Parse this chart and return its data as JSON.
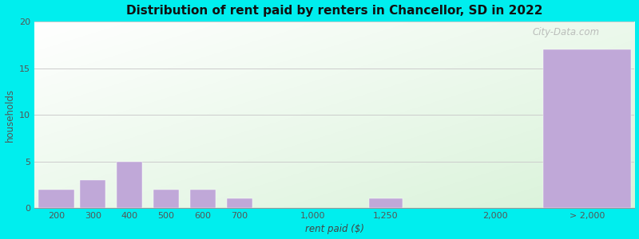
{
  "title": "Distribution of rent paid by renters in Chancellor, SD in 2022",
  "xlabel": "rent paid ($)",
  "ylabel": "households",
  "background_outer": "#00EEEE",
  "bar_color": "#c0a8d8",
  "ylim": [
    0,
    20
  ],
  "yticks": [
    0,
    5,
    10,
    15,
    20
  ],
  "positions": [
    0,
    1,
    2,
    3,
    4,
    5,
    7,
    9,
    12,
    14.5
  ],
  "bar_widths": [
    1,
    0.7,
    0.7,
    0.7,
    0.7,
    0.7,
    0.9,
    0.9,
    0.1,
    2.4
  ],
  "values": [
    2,
    3,
    5,
    2,
    2,
    1,
    0,
    1,
    0,
    17
  ],
  "xtick_labels": [
    "200",
    "300",
    "400",
    "500",
    "600",
    "700",
    "1,000",
    "1,250",
    "2,000",
    "> 2,000"
  ],
  "xtick_pos": [
    0,
    1,
    2,
    3,
    4,
    5,
    7,
    9,
    12,
    14.5
  ],
  "xlim": [
    -0.6,
    15.8
  ],
  "watermark": "City-Data.com"
}
